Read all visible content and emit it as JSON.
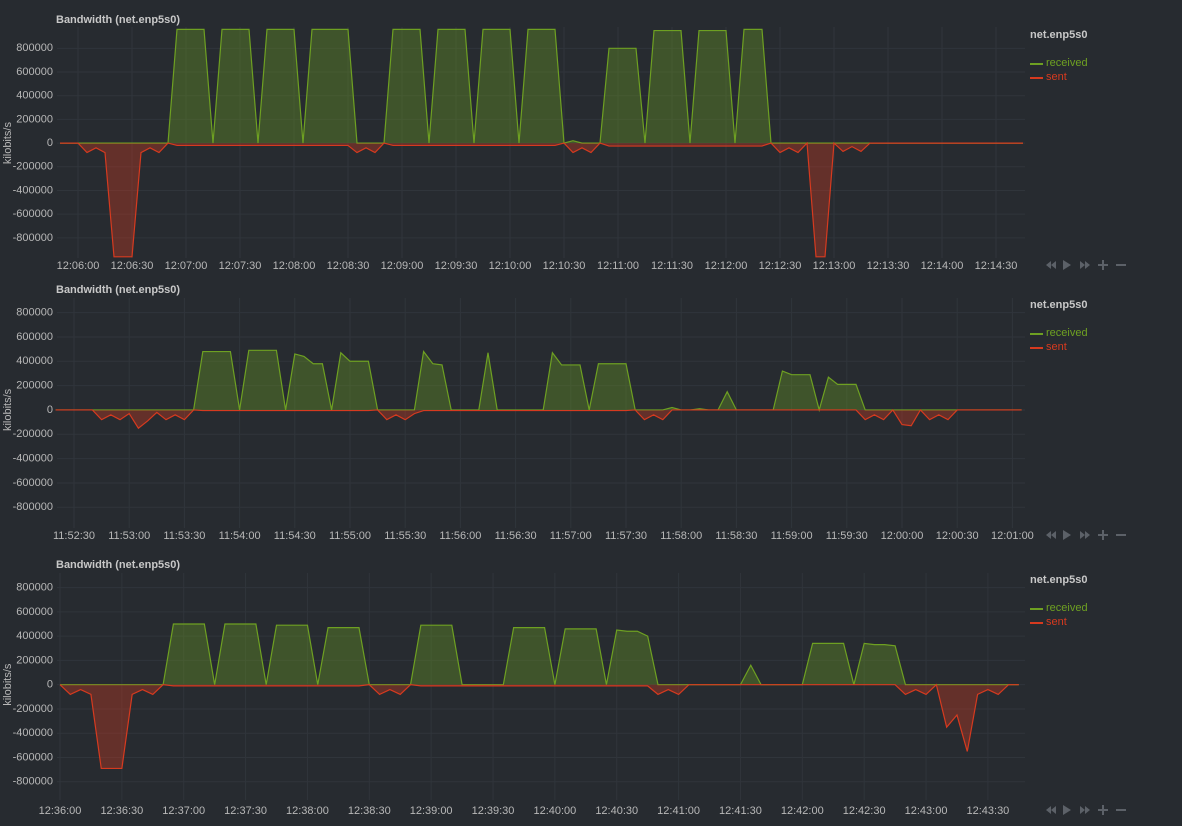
{
  "chart_data": [
    {
      "type": "line",
      "title": "Bandwidth (net.enp5s0)",
      "y_label": "kilobits/s",
      "legend_title": "net.enp5s0",
      "grid": true,
      "categories": [
        null,
        null,
        "12:06:00",
        null,
        null,
        null,
        null,
        null,
        "12:06:30",
        null,
        null,
        null,
        null,
        null,
        "12:07:00",
        null,
        null,
        null,
        null,
        null,
        "12:07:30",
        null,
        null,
        null,
        null,
        null,
        "12:08:00",
        null,
        null,
        null,
        null,
        null,
        "12:08:30",
        null,
        null,
        null,
        null,
        null,
        "12:09:00",
        null,
        null,
        null,
        null,
        null,
        "12:09:30",
        null,
        null,
        null,
        null,
        null,
        "12:10:00",
        null,
        null,
        null,
        null,
        null,
        "12:10:30",
        null,
        null,
        null,
        null,
        null,
        "12:11:00",
        null,
        null,
        null,
        null,
        null,
        "12:11:30",
        null,
        null,
        null,
        null,
        null,
        "12:12:00",
        null,
        null,
        null,
        null,
        null,
        "12:12:30",
        null,
        null,
        null,
        null,
        null,
        "12:13:00",
        null,
        null,
        null,
        null,
        null,
        "12:13:30",
        null,
        null,
        null,
        null,
        null,
        "12:14:00",
        null,
        null,
        null,
        null,
        null,
        "12:14:30",
        null,
        null,
        null
      ],
      "ylim": [
        -970000,
        980000
      ],
      "yticks": [
        -800000,
        -600000,
        -400000,
        -200000,
        0,
        200000,
        400000,
        600000,
        800000
      ],
      "series": [
        {
          "name": "received",
          "color": "#6ea022",
          "values": [
            0,
            0,
            0,
            0,
            0,
            0,
            0,
            0,
            0,
            0,
            0,
            0,
            0,
            960000,
            960000,
            960000,
            960000,
            0,
            960000,
            960000,
            960000,
            960000,
            0,
            960000,
            960000,
            960000,
            960000,
            0,
            960000,
            960000,
            960000,
            960000,
            960000,
            0,
            0,
            0,
            0,
            960000,
            960000,
            960000,
            960000,
            0,
            960000,
            960000,
            960000,
            960000,
            0,
            960000,
            960000,
            960000,
            960000,
            0,
            960000,
            960000,
            960000,
            960000,
            0,
            20000,
            0,
            0,
            0,
            800000,
            800000,
            800000,
            800000,
            0,
            950000,
            950000,
            950000,
            950000,
            0,
            950000,
            950000,
            950000,
            950000,
            0,
            960000,
            960000,
            960000,
            0,
            0,
            0,
            0,
            0,
            0,
            0,
            0,
            0,
            0,
            0,
            0,
            0,
            0,
            0,
            0,
            0,
            0,
            0,
            0,
            0,
            0,
            0,
            0,
            0,
            0,
            0,
            0,
            0
          ]
        },
        {
          "name": "sent",
          "color": "#d63a1f",
          "values": [
            0,
            0,
            0,
            -80000,
            -40000,
            -80000,
            -960000,
            -960000,
            -960000,
            -80000,
            -40000,
            -80000,
            0,
            -20000,
            -20000,
            -20000,
            -20000,
            -20000,
            -20000,
            -20000,
            -20000,
            -20000,
            -20000,
            -20000,
            -20000,
            -20000,
            -20000,
            -20000,
            -20000,
            -20000,
            -20000,
            -20000,
            -20000,
            -80000,
            -40000,
            -80000,
            0,
            -20000,
            -20000,
            -20000,
            -20000,
            -20000,
            -20000,
            -20000,
            -20000,
            -20000,
            -20000,
            -20000,
            -20000,
            -20000,
            -20000,
            -20000,
            -20000,
            -20000,
            -20000,
            -20000,
            0,
            -80000,
            -40000,
            -80000,
            0,
            -25000,
            -25000,
            -25000,
            -25000,
            -25000,
            -25000,
            -25000,
            -25000,
            -25000,
            -25000,
            -25000,
            -25000,
            -25000,
            -25000,
            -25000,
            -25000,
            -25000,
            -25000,
            0,
            -80000,
            -40000,
            -80000,
            0,
            -960000,
            -960000,
            0,
            -70000,
            -30000,
            -70000,
            0,
            0,
            0,
            0,
            0,
            0,
            0,
            0,
            0,
            0,
            0,
            0,
            0,
            0,
            0,
            0,
            0,
            0
          ]
        }
      ]
    },
    {
      "type": "line",
      "title": "Bandwidth (net.enp5s0)",
      "y_label": "kilobits/s",
      "legend_title": "net.enp5s0",
      "grid": true,
      "categories": [
        null,
        null,
        "11:52:30",
        null,
        null,
        null,
        null,
        null,
        "11:53:00",
        null,
        null,
        null,
        null,
        null,
        "11:53:30",
        null,
        null,
        null,
        null,
        null,
        "11:54:00",
        null,
        null,
        null,
        null,
        null,
        "11:54:30",
        null,
        null,
        null,
        null,
        null,
        "11:55:00",
        null,
        null,
        null,
        null,
        null,
        "11:55:30",
        null,
        null,
        null,
        null,
        null,
        "11:56:00",
        null,
        null,
        null,
        null,
        null,
        "11:56:30",
        null,
        null,
        null,
        null,
        null,
        "11:57:00",
        null,
        null,
        null,
        null,
        null,
        "11:57:30",
        null,
        null,
        null,
        null,
        null,
        "11:58:00",
        null,
        null,
        null,
        null,
        null,
        "11:58:30",
        null,
        null,
        null,
        null,
        null,
        "11:59:00",
        null,
        null,
        null,
        null,
        null,
        "11:59:30",
        null,
        null,
        null,
        null,
        null,
        "12:00:00",
        null,
        null,
        null,
        null,
        null,
        "12:00:30",
        null,
        null,
        null,
        null,
        null,
        "12:01:00",
        null
      ],
      "ylim": [
        -970000,
        920000
      ],
      "yticks": [
        -800000,
        -600000,
        -400000,
        -200000,
        0,
        200000,
        400000,
        600000,
        800000
      ],
      "series": [
        {
          "name": "received",
          "color": "#6ea022",
          "values": [
            0,
            0,
            0,
            0,
            0,
            0,
            0,
            0,
            0,
            0,
            0,
            0,
            0,
            0,
            0,
            0,
            480000,
            480000,
            480000,
            480000,
            0,
            490000,
            490000,
            490000,
            490000,
            0,
            460000,
            440000,
            380000,
            380000,
            0,
            470000,
            400000,
            400000,
            400000,
            0,
            0,
            0,
            0,
            0,
            480000,
            380000,
            370000,
            0,
            0,
            0,
            0,
            470000,
            0,
            0,
            0,
            0,
            0,
            0,
            470000,
            370000,
            370000,
            370000,
            0,
            380000,
            380000,
            380000,
            380000,
            0,
            0,
            0,
            0,
            20000,
            0,
            0,
            10000,
            0,
            0,
            150000,
            0,
            0,
            0,
            0,
            0,
            320000,
            290000,
            290000,
            290000,
            0,
            270000,
            210000,
            210000,
            210000,
            0,
            0,
            0,
            0,
            0,
            0,
            0,
            0,
            0,
            0,
            0,
            0,
            0,
            0,
            0,
            0,
            0,
            0
          ]
        },
        {
          "name": "sent",
          "color": "#d63a1f",
          "values": [
            0,
            0,
            0,
            0,
            0,
            -80000,
            -40000,
            -80000,
            -30000,
            -150000,
            -90000,
            -20000,
            -80000,
            -40000,
            -80000,
            0,
            -5000,
            -5000,
            -5000,
            -5000,
            -5000,
            -5000,
            -5000,
            -5000,
            -5000,
            -5000,
            -5000,
            -5000,
            -5000,
            -5000,
            -5000,
            -5000,
            -5000,
            -5000,
            -5000,
            0,
            -80000,
            -40000,
            -80000,
            -30000,
            -5000,
            -5000,
            -5000,
            -5000,
            -5000,
            -5000,
            -5000,
            -5000,
            -5000,
            -5000,
            -5000,
            -5000,
            -5000,
            -5000,
            -5000,
            -5000,
            -5000,
            -5000,
            -5000,
            -5000,
            -5000,
            -5000,
            -5000,
            0,
            -80000,
            -40000,
            -80000,
            0,
            0,
            0,
            0,
            0,
            0,
            0,
            0,
            0,
            0,
            0,
            0,
            0,
            0,
            0,
            0,
            0,
            0,
            0,
            0,
            0,
            -80000,
            -40000,
            -80000,
            0,
            -120000,
            -130000,
            0,
            -80000,
            -40000,
            -80000,
            0,
            0,
            0,
            0,
            0,
            0,
            0,
            0
          ]
        }
      ]
    },
    {
      "type": "line",
      "title": "Bandwidth (net.enp5s0)",
      "y_label": "kilobits/s",
      "legend_title": "net.enp5s0",
      "grid": true,
      "categories": [
        "12:36:00",
        null,
        null,
        null,
        null,
        null,
        "12:36:30",
        null,
        null,
        null,
        null,
        null,
        "12:37:00",
        null,
        null,
        null,
        null,
        null,
        "12:37:30",
        null,
        null,
        null,
        null,
        null,
        "12:38:00",
        null,
        null,
        null,
        null,
        null,
        "12:38:30",
        null,
        null,
        null,
        null,
        null,
        "12:39:00",
        null,
        null,
        null,
        null,
        null,
        "12:39:30",
        null,
        null,
        null,
        null,
        null,
        "12:40:00",
        null,
        null,
        null,
        null,
        null,
        "12:40:30",
        null,
        null,
        null,
        null,
        null,
        "12:41:00",
        null,
        null,
        null,
        null,
        null,
        "12:41:30",
        null,
        null,
        null,
        null,
        null,
        "12:42:00",
        null,
        null,
        null,
        null,
        null,
        "12:42:30",
        null,
        null,
        null,
        null,
        null,
        "12:43:00",
        null,
        null,
        null,
        null,
        null,
        "12:43:30",
        null,
        null,
        null
      ],
      "ylim": [
        -950000,
        920000
      ],
      "yticks": [
        -800000,
        -600000,
        -400000,
        -200000,
        0,
        200000,
        400000,
        600000,
        800000
      ],
      "series": [
        {
          "name": "received",
          "color": "#6ea022",
          "values": [
            0,
            0,
            0,
            0,
            0,
            0,
            0,
            0,
            0,
            0,
            0,
            500000,
            500000,
            500000,
            500000,
            0,
            500000,
            500000,
            500000,
            500000,
            0,
            490000,
            490000,
            490000,
            490000,
            0,
            470000,
            470000,
            470000,
            470000,
            0,
            0,
            0,
            0,
            0,
            490000,
            490000,
            490000,
            490000,
            0,
            0,
            0,
            0,
            0,
            470000,
            470000,
            470000,
            470000,
            0,
            460000,
            460000,
            460000,
            460000,
            0,
            450000,
            440000,
            440000,
            400000,
            0,
            0,
            0,
            0,
            0,
            0,
            0,
            0,
            0,
            160000,
            0,
            0,
            0,
            0,
            0,
            340000,
            340000,
            340000,
            340000,
            0,
            340000,
            330000,
            330000,
            320000,
            0,
            0,
            0,
            0,
            0,
            0,
            0,
            0,
            0,
            0,
            0,
            0
          ]
        },
        {
          "name": "sent",
          "color": "#d63a1f",
          "values": [
            0,
            -80000,
            -40000,
            -80000,
            -690000,
            -690000,
            -690000,
            -80000,
            -40000,
            -80000,
            0,
            -10000,
            -10000,
            -10000,
            -10000,
            -10000,
            -10000,
            -10000,
            -10000,
            -10000,
            -10000,
            -10000,
            -10000,
            -10000,
            -10000,
            -10000,
            -10000,
            -10000,
            -10000,
            -10000,
            0,
            -80000,
            -40000,
            -80000,
            0,
            -10000,
            -10000,
            -10000,
            -10000,
            -10000,
            -10000,
            -10000,
            -10000,
            -10000,
            -10000,
            -10000,
            -10000,
            -10000,
            -10000,
            -10000,
            -10000,
            -10000,
            -10000,
            -10000,
            -10000,
            -10000,
            -10000,
            -10000,
            -80000,
            -40000,
            -80000,
            0,
            0,
            0,
            0,
            0,
            0,
            0,
            0,
            0,
            0,
            0,
            0,
            0,
            0,
            0,
            0,
            0,
            0,
            0,
            0,
            0,
            -80000,
            -40000,
            -80000,
            0,
            -350000,
            -250000,
            -550000,
            -80000,
            -40000,
            -80000,
            0,
            0
          ]
        }
      ]
    }
  ]
}
